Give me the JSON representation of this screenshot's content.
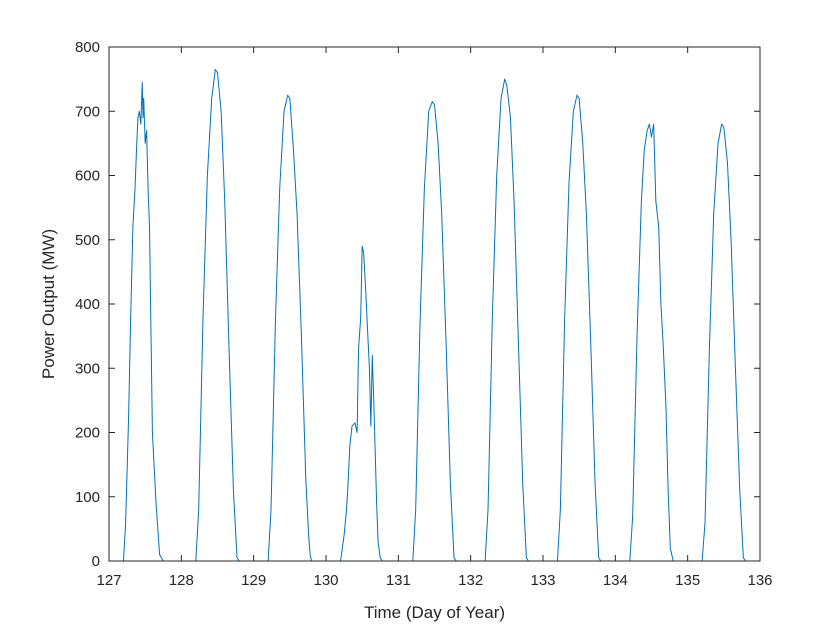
{
  "chart_data": {
    "type": "line",
    "title": "",
    "xlabel": "Time (Day of Year)",
    "ylabel": "Power Output (MW)",
    "xlim": [
      127,
      136
    ],
    "ylim": [
      0,
      800
    ],
    "xticks": [
      127,
      128,
      129,
      130,
      131,
      132,
      133,
      134,
      135,
      136
    ],
    "yticks": [
      0,
      100,
      200,
      300,
      400,
      500,
      600,
      700,
      800
    ],
    "grid": false,
    "legend": "none",
    "colors": {
      "line": "#0072BD",
      "axes": "#262626",
      "background": "#ffffff"
    },
    "series": [
      {
        "x": [
          127.0,
          127.2,
          127.23,
          127.27,
          127.3,
          127.33,
          127.36,
          127.38,
          127.4,
          127.42,
          127.44,
          127.46,
          127.47,
          127.48,
          127.5,
          127.52,
          127.54,
          127.56,
          127.58,
          127.6,
          127.65,
          127.7,
          127.75,
          127.8,
          128.2,
          128.24,
          128.3,
          128.36,
          128.42,
          128.47,
          128.5,
          128.55,
          128.6,
          128.66,
          128.72,
          128.77,
          128.8,
          129.2,
          129.24,
          129.3,
          129.36,
          129.42,
          129.47,
          129.5,
          129.55,
          129.6,
          129.66,
          129.72,
          129.76,
          129.78,
          129.8,
          130.2,
          130.22,
          130.25,
          130.28,
          130.3,
          130.33,
          130.36,
          130.4,
          130.43,
          130.45,
          130.48,
          130.5,
          130.52,
          130.55,
          130.57,
          130.6,
          130.62,
          130.64,
          130.66,
          130.68,
          130.7,
          130.72,
          130.75,
          130.78,
          130.8,
          131.2,
          131.24,
          131.3,
          131.36,
          131.42,
          131.47,
          131.5,
          131.55,
          131.6,
          131.66,
          131.72,
          131.77,
          131.8,
          132.2,
          132.24,
          132.3,
          132.36,
          132.42,
          132.47,
          132.5,
          132.55,
          132.6,
          132.66,
          132.72,
          132.77,
          132.8,
          133.2,
          133.24,
          133.3,
          133.36,
          133.42,
          133.47,
          133.5,
          133.55,
          133.6,
          133.66,
          133.72,
          133.77,
          133.8,
          134.2,
          134.24,
          134.3,
          134.36,
          134.4,
          134.44,
          134.47,
          134.5,
          134.53,
          134.56,
          134.6,
          134.63,
          134.66,
          134.7,
          134.73,
          134.76,
          134.8,
          135.2,
          135.24,
          135.3,
          135.36,
          135.42,
          135.47,
          135.5,
          135.55,
          135.6,
          135.66,
          135.72,
          135.77,
          135.8,
          136.0
        ],
        "y": [
          0,
          0,
          60,
          220,
          380,
          520,
          580,
          640,
          690,
          700,
          680,
          745,
          690,
          720,
          650,
          670,
          580,
          520,
          360,
          200,
          90,
          10,
          0,
          0,
          0,
          80,
          380,
          600,
          720,
          765,
          760,
          700,
          560,
          330,
          110,
          5,
          0,
          0,
          80,
          370,
          580,
          700,
          725,
          720,
          640,
          540,
          350,
          130,
          40,
          10,
          0,
          0,
          15,
          40,
          75,
          110,
          180,
          210,
          215,
          200,
          330,
          380,
          490,
          480,
          420,
          370,
          300,
          210,
          320,
          250,
          170,
          90,
          30,
          5,
          0,
          0,
          0,
          80,
          370,
          580,
          700,
          715,
          710,
          650,
          540,
          340,
          120,
          5,
          0,
          0,
          80,
          380,
          600,
          720,
          750,
          740,
          690,
          560,
          340,
          120,
          5,
          0,
          0,
          80,
          380,
          590,
          700,
          725,
          720,
          650,
          540,
          340,
          120,
          5,
          0,
          0,
          70,
          350,
          560,
          640,
          670,
          680,
          660,
          680,
          560,
          520,
          400,
          340,
          240,
          110,
          20,
          0,
          0,
          60,
          330,
          540,
          650,
          680,
          675,
          620,
          500,
          300,
          110,
          5,
          0,
          0
        ]
      }
    ]
  }
}
